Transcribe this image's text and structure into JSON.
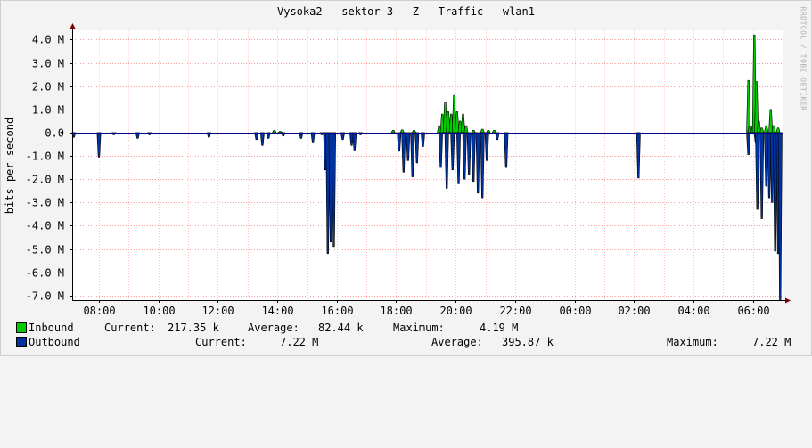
{
  "title": "Vysoka2 - sektor 3 - Z - Traffic - wlan1",
  "watermark": "RRDTOOL / TOBI OETIKER",
  "colors": {
    "inbound": "#00cc00",
    "outbound": "#0033a0",
    "background": "#ffffff",
    "grid": "#ff9999",
    "axis": "#000000"
  },
  "chart_data": {
    "type": "area",
    "ylabel": "bits per second",
    "y_ticks": [
      "4.0 M",
      "3.0 M",
      "2.0 M",
      "1.0 M",
      "0.0",
      "-1.0 M",
      "-2.0 M",
      "-3.0 M",
      "-4.0 M",
      "-5.0 M",
      "-6.0 M",
      "-7.0 M"
    ],
    "ylim": [
      -7.2,
      4.4
    ],
    "unit": "M",
    "x_ticks": [
      "08:00",
      "10:00",
      "12:00",
      "14:00",
      "16:00",
      "18:00",
      "20:00",
      "22:00",
      "00:00",
      "02:00",
      "04:00",
      "06:00"
    ],
    "x_hours_range": [
      7.1,
      31.0
    ],
    "series": [
      {
        "name": "Inbound",
        "points": [
          [
            13.9,
            0.1
          ],
          [
            14.1,
            0.05
          ],
          [
            17.9,
            0.1
          ],
          [
            18.2,
            0.12
          ],
          [
            18.6,
            0.1
          ],
          [
            19.45,
            0.3
          ],
          [
            19.55,
            0.8
          ],
          [
            19.65,
            1.3
          ],
          [
            19.75,
            0.9
          ],
          [
            19.85,
            0.8
          ],
          [
            19.95,
            1.6
          ],
          [
            20.05,
            0.9
          ],
          [
            20.15,
            0.5
          ],
          [
            20.25,
            0.8
          ],
          [
            20.35,
            0.3
          ],
          [
            20.6,
            0.1
          ],
          [
            20.9,
            0.15
          ],
          [
            21.1,
            0.1
          ],
          [
            21.3,
            0.1
          ],
          [
            29.85,
            2.25
          ],
          [
            29.9,
            0.3
          ],
          [
            30.0,
            0.3
          ],
          [
            30.05,
            4.2
          ],
          [
            30.12,
            2.2
          ],
          [
            30.2,
            0.5
          ],
          [
            30.3,
            0.2
          ],
          [
            30.45,
            0.3
          ],
          [
            30.6,
            1.0
          ],
          [
            30.7,
            0.3
          ],
          [
            30.85,
            0.2
          ]
        ]
      },
      {
        "name": "Outbound",
        "points": [
          [
            7.15,
            -0.2
          ],
          [
            8.0,
            -1.05
          ],
          [
            8.5,
            -0.1
          ],
          [
            9.3,
            -0.25
          ],
          [
            9.7,
            -0.1
          ],
          [
            11.7,
            -0.2
          ],
          [
            13.3,
            -0.3
          ],
          [
            13.5,
            -0.55
          ],
          [
            13.7,
            -0.25
          ],
          [
            14.2,
            -0.15
          ],
          [
            14.8,
            -0.25
          ],
          [
            15.2,
            -0.4
          ],
          [
            15.5,
            -0.1
          ],
          [
            15.62,
            -1.6
          ],
          [
            15.7,
            -5.2
          ],
          [
            15.8,
            -4.7
          ],
          [
            15.9,
            -4.9
          ],
          [
            16.2,
            -0.3
          ],
          [
            16.5,
            -0.55
          ],
          [
            16.6,
            -0.75
          ],
          [
            16.8,
            -0.1
          ],
          [
            18.1,
            -0.8
          ],
          [
            18.25,
            -1.7
          ],
          [
            18.4,
            -1.2
          ],
          [
            18.55,
            -1.9
          ],
          [
            18.7,
            -1.3
          ],
          [
            18.9,
            -0.6
          ],
          [
            19.5,
            -1.5
          ],
          [
            19.7,
            -2.4
          ],
          [
            19.9,
            -1.6
          ],
          [
            20.1,
            -2.2
          ],
          [
            20.3,
            -2.0
          ],
          [
            20.45,
            -1.8
          ],
          [
            20.6,
            -2.1
          ],
          [
            20.75,
            -2.6
          ],
          [
            20.9,
            -2.8
          ],
          [
            21.05,
            -1.2
          ],
          [
            21.4,
            -0.3
          ],
          [
            21.7,
            -1.5
          ],
          [
            26.15,
            -1.95
          ],
          [
            29.85,
            -0.95
          ],
          [
            30.1,
            -0.4
          ],
          [
            30.15,
            -3.3
          ],
          [
            30.3,
            -3.7
          ],
          [
            30.45,
            -2.3
          ],
          [
            30.55,
            -2.8
          ],
          [
            30.65,
            -3.0
          ],
          [
            30.75,
            -5.1
          ],
          [
            30.85,
            -5.2
          ],
          [
            30.92,
            -7.22
          ]
        ]
      }
    ],
    "legend": [
      {
        "name": "Inbound",
        "current_label": "Current:",
        "current": "217.35 k",
        "average_label": "Average:",
        "average": "82.44 k",
        "maximum_label": "Maximum:",
        "maximum": "4.19 M"
      },
      {
        "name": "Outbound",
        "current_label": "Current:",
        "current": "7.22 M",
        "average_label": "Average:",
        "average": "395.87 k",
        "maximum_label": "Maximum:",
        "maximum": "7.22 M"
      }
    ]
  }
}
